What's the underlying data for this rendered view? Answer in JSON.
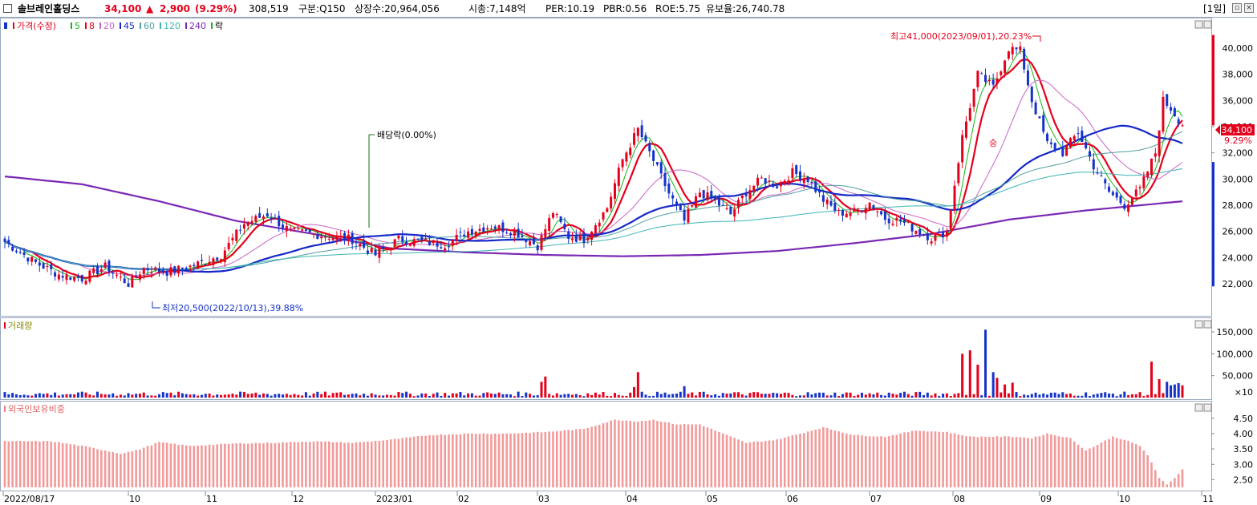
{
  "header": {
    "name": "솔브레인홀딩스",
    "price": "34,100",
    "change_arrow": "▲",
    "change": "2,900",
    "change_pct": "(9.29%)",
    "volume": "308,519",
    "category": "구분:Q150",
    "listed": "상장수:20,964,056",
    "mcap": "시총:7,148억",
    "per": "PER:10.19",
    "pbr": "PBR:0.56",
    "roe": "ROE:5.75",
    "reserve": "유보율:26,740.78",
    "period": "[1일]",
    "colors": {
      "up": "#e5001b",
      "down": "#1533c9",
      "text": "#000000"
    }
  },
  "legend": {
    "price_label": "가격(수정)",
    "ma": [
      {
        "label": "5",
        "color": "#14b614"
      },
      {
        "label": "8",
        "color": "#e5001b"
      },
      {
        "label": "20",
        "color": "#c864c8"
      },
      {
        "label": "45",
        "color": "#1428c8"
      },
      {
        "label": "60",
        "color": "#50a0a0"
      },
      {
        "label": "120",
        "color": "#3cb4b4"
      },
      {
        "label": "240",
        "color": "#7a28b4"
      }
    ],
    "rak_label": "락",
    "volume_label": "거래량",
    "foreign_label": "외국인보유비중"
  },
  "annotations": {
    "high": "최고41,000(2023/09/01),20.23%",
    "low": "최저20,500(2022/10/13),39.88%",
    "dividend": "배당락(0.00%)",
    "badge": "승",
    "current_price": "34,100",
    "current_pct": "9.29%",
    "volume_unit": "×10"
  },
  "chart_data": [
    {
      "type": "candlestick",
      "title": "가격(수정)",
      "x_labels": [
        "2022/08/17",
        "10",
        "11",
        "12",
        "2023/01",
        "02",
        "03",
        "04",
        "05",
        "06",
        "07",
        "08",
        "09",
        "10",
        "11"
      ],
      "ylim": [
        20500,
        41500
      ],
      "y_ticks": [
        22000,
        24000,
        26000,
        28000,
        30000,
        32000,
        34000,
        36000,
        38000,
        40000
      ],
      "y_tick_labels": [
        "22,000",
        "24,000",
        "26,000",
        "28,000",
        "30,000",
        "32,000",
        "34,000",
        "36,000",
        "38,000",
        "40,000"
      ],
      "close_anchors": [
        [
          0,
          25200
        ],
        [
          8,
          23600
        ],
        [
          14,
          22700
        ],
        [
          20,
          22400
        ],
        [
          26,
          23300
        ],
        [
          32,
          22000
        ],
        [
          36,
          23200
        ],
        [
          42,
          22900
        ],
        [
          48,
          23300
        ],
        [
          56,
          24200
        ],
        [
          62,
          26600
        ],
        [
          68,
          27300
        ],
        [
          74,
          26000
        ],
        [
          80,
          25800
        ],
        [
          90,
          25400
        ],
        [
          96,
          24200
        ],
        [
          102,
          25400
        ],
        [
          108,
          25200
        ],
        [
          114,
          25000
        ],
        [
          120,
          26000
        ],
        [
          126,
          26400
        ],
        [
          132,
          26000
        ],
        [
          138,
          24900
        ],
        [
          142,
          27500
        ],
        [
          146,
          25600
        ],
        [
          150,
          25400
        ],
        [
          156,
          27800
        ],
        [
          160,
          31500
        ],
        [
          164,
          33800
        ],
        [
          168,
          31400
        ],
        [
          172,
          28900
        ],
        [
          176,
          26800
        ],
        [
          180,
          29000
        ],
        [
          184,
          28300
        ],
        [
          188,
          27300
        ],
        [
          192,
          29000
        ],
        [
          196,
          30000
        ],
        [
          200,
          29500
        ],
        [
          204,
          30500
        ],
        [
          208,
          30000
        ],
        [
          212,
          28400
        ],
        [
          216,
          27400
        ],
        [
          220,
          27500
        ],
        [
          224,
          28200
        ],
        [
          228,
          27000
        ],
        [
          232,
          26800
        ],
        [
          236,
          26100
        ],
        [
          240,
          25500
        ],
        [
          244,
          26000
        ],
        [
          248,
          33200
        ],
        [
          252,
          38000
        ],
        [
          256,
          37000
        ],
        [
          260,
          40000
        ],
        [
          263,
          39800
        ],
        [
          266,
          36000
        ],
        [
          270,
          32700
        ],
        [
          274,
          32000
        ],
        [
          278,
          33600
        ],
        [
          282,
          31000
        ],
        [
          286,
          29000
        ],
        [
          290,
          28000
        ],
        [
          294,
          29200
        ],
        [
          298,
          32000
        ],
        [
          300,
          36000
        ],
        [
          302,
          35400
        ],
        [
          305,
          34100
        ]
      ],
      "ma_periods": [
        5,
        8,
        20,
        45,
        60,
        120,
        240
      ],
      "ma240_anchors": [
        [
          0,
          30200
        ],
        [
          20,
          29600
        ],
        [
          40,
          28300
        ],
        [
          60,
          26800
        ],
        [
          80,
          25800
        ],
        [
          100,
          24700
        ],
        [
          120,
          24400
        ],
        [
          140,
          24200
        ],
        [
          160,
          24100
        ],
        [
          180,
          24200
        ],
        [
          200,
          24500
        ],
        [
          220,
          25100
        ],
        [
          240,
          25800
        ],
        [
          260,
          26900
        ],
        [
          280,
          27600
        ],
        [
          305,
          28300
        ]
      ],
      "high_value": 41000,
      "low_value": 20500,
      "current_value": 34100
    },
    {
      "type": "bar",
      "title": "거래량",
      "y_ticks": [
        50000,
        100000,
        150000
      ],
      "y_tick_labels": [
        "50,000",
        "100,000",
        "150,000"
      ],
      "ylim": [
        0,
        165000
      ],
      "base_level": 8000,
      "spikes": [
        [
          139,
          36000
        ],
        [
          140,
          48000
        ],
        [
          163,
          24000
        ],
        [
          164,
          58000
        ],
        [
          176,
          26000
        ],
        [
          248,
          100000
        ],
        [
          250,
          108000
        ],
        [
          252,
          75000
        ],
        [
          254,
          155000
        ],
        [
          256,
          58000
        ],
        [
          257,
          45000
        ],
        [
          259,
          30000
        ],
        [
          261,
          34000
        ],
        [
          297,
          82000
        ],
        [
          299,
          42000
        ],
        [
          301,
          36000
        ],
        [
          302,
          28000
        ],
        [
          303,
          30000
        ],
        [
          304,
          33000
        ],
        [
          305,
          28000
        ]
      ]
    },
    {
      "type": "bar",
      "title": "외국인보유비중",
      "y_ticks": [
        2.5,
        3.0,
        3.5,
        4.0,
        4.5
      ],
      "y_tick_labels": [
        "2.50",
        "3.00",
        "3.50",
        "4.00",
        "4.50"
      ],
      "ylim": [
        2.25,
        4.65
      ],
      "value_anchors": [
        [
          0,
          3.75
        ],
        [
          12,
          3.75
        ],
        [
          20,
          3.6
        ],
        [
          30,
          3.35
        ],
        [
          34,
          3.45
        ],
        [
          40,
          3.72
        ],
        [
          48,
          3.6
        ],
        [
          60,
          3.68
        ],
        [
          70,
          3.7
        ],
        [
          80,
          3.75
        ],
        [
          90,
          3.7
        ],
        [
          100,
          3.8
        ],
        [
          110,
          3.95
        ],
        [
          120,
          4.0
        ],
        [
          130,
          4.0
        ],
        [
          140,
          4.05
        ],
        [
          150,
          4.15
        ],
        [
          158,
          4.45
        ],
        [
          164,
          4.4
        ],
        [
          168,
          4.45
        ],
        [
          174,
          4.3
        ],
        [
          180,
          4.3
        ],
        [
          186,
          4.0
        ],
        [
          192,
          3.7
        ],
        [
          200,
          3.8
        ],
        [
          206,
          4.0
        ],
        [
          212,
          4.2
        ],
        [
          220,
          3.95
        ],
        [
          228,
          3.9
        ],
        [
          236,
          4.1
        ],
        [
          244,
          4.05
        ],
        [
          250,
          3.9
        ],
        [
          256,
          3.9
        ],
        [
          262,
          3.9
        ],
        [
          266,
          3.85
        ],
        [
          270,
          4.0
        ],
        [
          276,
          3.85
        ],
        [
          280,
          3.45
        ],
        [
          284,
          3.7
        ],
        [
          287,
          3.9
        ],
        [
          290,
          3.8
        ],
        [
          294,
          3.6
        ],
        [
          296,
          3.3
        ],
        [
          299,
          2.55
        ],
        [
          301,
          2.35
        ],
        [
          303,
          2.55
        ],
        [
          305,
          2.85
        ]
      ]
    }
  ]
}
